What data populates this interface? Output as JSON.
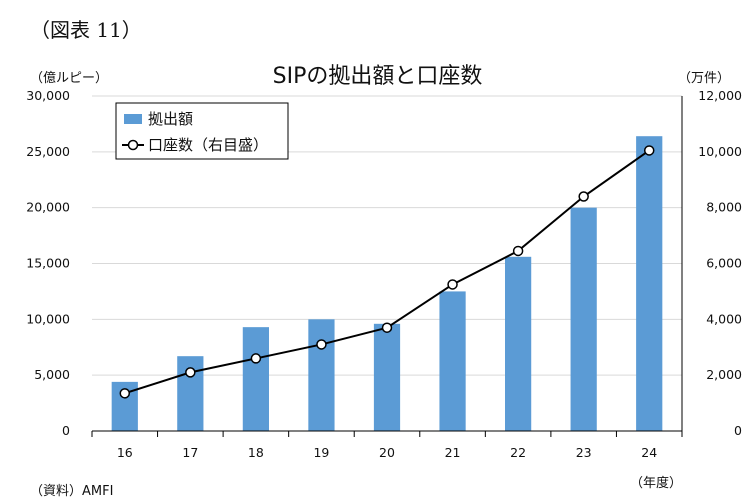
{
  "figure_label": "（図表 11）",
  "chart_data": {
    "type": "bar+line",
    "title": "SIPの拠出額と口座数",
    "categories": [
      "16",
      "17",
      "18",
      "19",
      "20",
      "21",
      "22",
      "23",
      "24"
    ],
    "series": [
      {
        "name": "拠出額",
        "type": "bar",
        "axis": "left",
        "color": "#5b9bd5",
        "values": [
          4400,
          6700,
          9300,
          10000,
          9600,
          12500,
          15600,
          20000,
          26400
        ]
      },
      {
        "name": "口座数（右目盛）",
        "type": "line",
        "axis": "right",
        "color": "#000000",
        "marker": "open-circle",
        "values": [
          1350,
          2100,
          2600,
          3100,
          3700,
          5250,
          6450,
          8400,
          10050
        ]
      }
    ],
    "y_left": {
      "unit_label": "（億ルピー）",
      "range": [
        0,
        30000
      ],
      "ticks": [
        "0",
        "5,000",
        "10,000",
        "15,000",
        "20,000",
        "25,000",
        "30,000"
      ]
    },
    "y_right": {
      "unit_label": "（万件）",
      "range": [
        0,
        12000
      ],
      "ticks": [
        "0",
        "2,000",
        "4,000",
        "6,000",
        "8,000",
        "10,000",
        "12,000"
      ]
    },
    "x_unit_label": "（年度）",
    "grid": true,
    "legend_position": "top-left"
  },
  "source": "（資料）AMFI"
}
